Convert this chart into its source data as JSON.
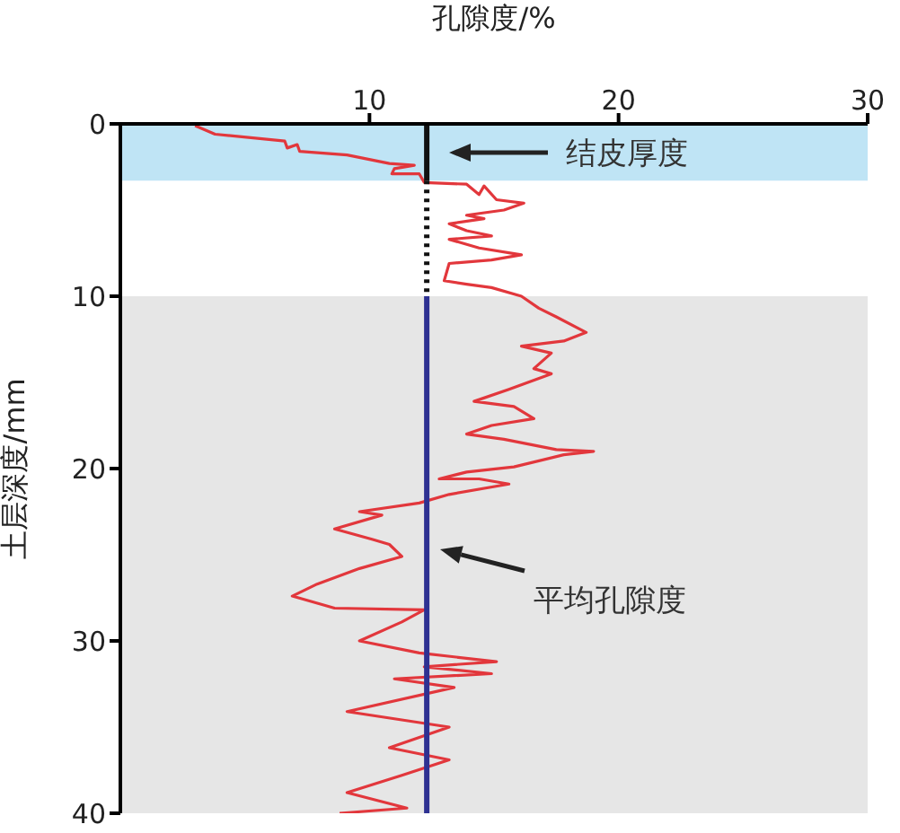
{
  "chart_data": {
    "type": "line",
    "xlabel": "孔隙度/%",
    "ylabel": "土层深度/mm",
    "xlim": [
      0,
      30
    ],
    "xticks": [
      10,
      20,
      30
    ],
    "ylim": [
      40,
      0
    ],
    "yticks": [
      0,
      10,
      20,
      30,
      40
    ],
    "marker": "none",
    "series": [
      {
        "color": "#e2373c",
        "x": [
          3.0,
          3.8,
          6.6,
          6.7,
          7.1,
          7.2,
          9.1,
          10.8,
          11.8,
          11.0,
          10.9,
          12.0,
          12.2,
          13.9,
          14.4,
          14.6,
          15.1,
          16.2,
          15.4,
          13.9,
          14.6,
          13.2,
          13.9,
          14.9,
          13.2,
          14.4,
          16.1,
          14.9,
          13.2,
          13.0,
          13.9,
          14.9,
          16.1,
          16.8,
          17.5,
          18.7,
          17.8,
          16.1,
          17.3,
          16.6,
          17.3,
          15.6,
          14.2,
          15.8,
          16.6,
          14.9,
          13.9,
          15.4,
          17.5,
          19.0,
          17.8,
          15.8,
          13.9,
          12.8,
          14.4,
          15.6,
          13.2,
          12.0,
          9.6,
          10.5,
          8.6,
          10.1,
          10.8,
          11.3,
          9.6,
          7.9,
          6.9,
          8.6,
          12.2,
          11.3,
          9.6,
          12.0,
          15.1,
          12.2,
          14.9,
          11.0,
          13.4,
          9.1,
          13.2,
          10.8,
          13.2,
          11.3,
          9.1,
          11.5,
          8.8
        ],
        "values": [
          0.1,
          0.6,
          1.0,
          1.4,
          1.2,
          1.6,
          1.8,
          2.3,
          2.4,
          2.6,
          2.9,
          2.9,
          3.4,
          3.5,
          4.1,
          3.6,
          4.4,
          4.6,
          5.0,
          5.3,
          5.5,
          5.8,
          6.2,
          6.5,
          6.7,
          7.2,
          7.6,
          7.9,
          8.1,
          9.1,
          9.3,
          9.5,
          10.0,
          10.7,
          11.2,
          12.1,
          12.6,
          12.9,
          13.3,
          14.2,
          14.5,
          15.4,
          16.1,
          16.4,
          17.1,
          17.5,
          18.0,
          18.3,
          18.9,
          19.0,
          19.2,
          19.9,
          20.2,
          20.6,
          20.6,
          20.9,
          21.5,
          22.0,
          22.5,
          22.7,
          23.5,
          24.1,
          24.4,
          25.1,
          25.8,
          26.7,
          27.4,
          28.1,
          28.2,
          28.9,
          30.0,
          30.7,
          31.2,
          31.5,
          31.9,
          32.2,
          32.7,
          34.1,
          35.0,
          36.2,
          36.9,
          37.8,
          38.8,
          39.7,
          40.0
        ]
      },
      {
        "color": "#111111",
        "line_style": "solid",
        "x": [
          12.3,
          12.3
        ],
        "values": [
          0,
          3.3
        ]
      },
      {
        "color": "#111111",
        "line_style": "dotted",
        "x": [
          12.3,
          12.3
        ],
        "values": [
          3.3,
          10
        ]
      },
      {
        "color": "#2e3192",
        "line_style": "solid",
        "x": [
          12.3,
          12.3
        ],
        "values": [
          10,
          40
        ]
      }
    ],
    "bands": [
      {
        "axis": "y",
        "from": 0,
        "to": 3.3,
        "color": "#bfe4f5"
      },
      {
        "axis": "y",
        "from": 10,
        "to": 40,
        "color": "#e6e6e6"
      }
    ],
    "annotations": [
      "结皮厚度",
      "平均孔隙度"
    ]
  }
}
